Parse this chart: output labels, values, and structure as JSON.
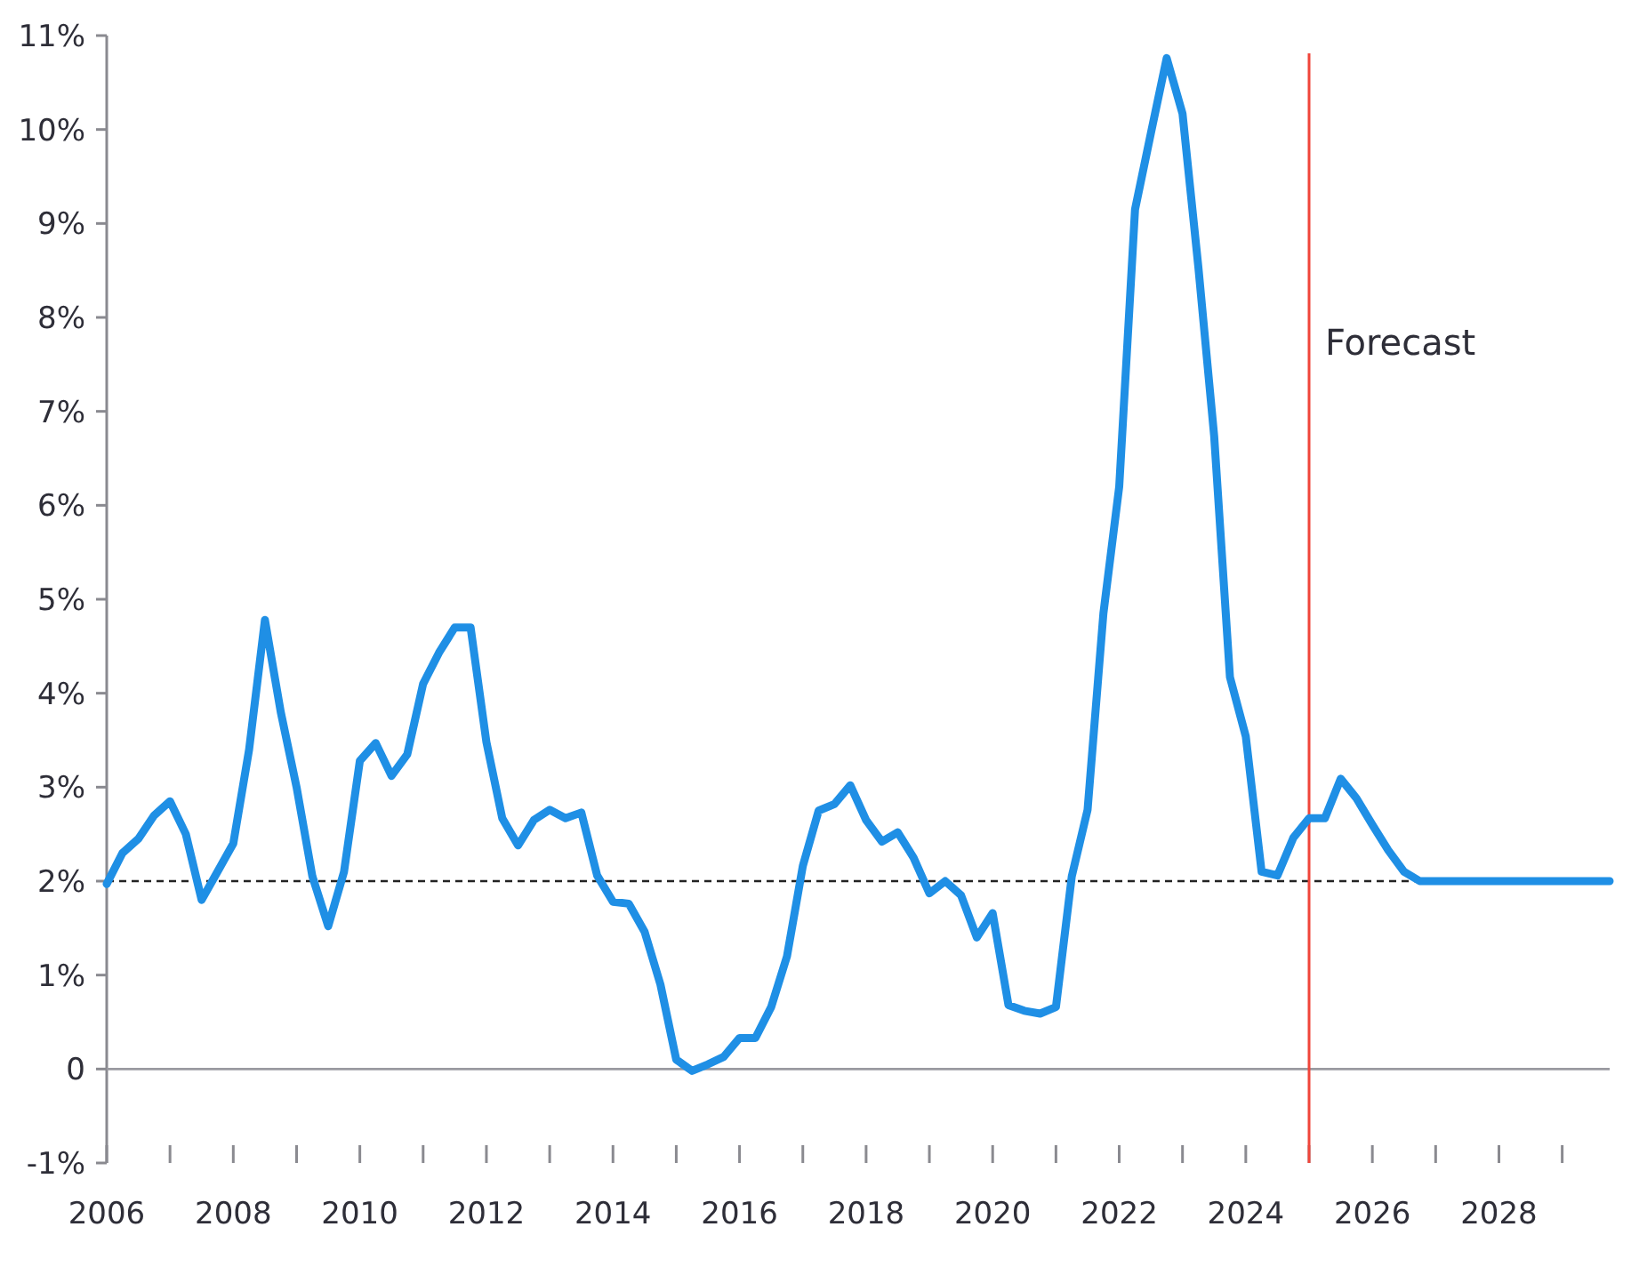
{
  "chart_data": {
    "type": "line",
    "x": [
      2006,
      2006.25,
      2006.5,
      2006.75,
      2007,
      2007.25,
      2007.5,
      2007.75,
      2008,
      2008.25,
      2008.5,
      2008.75,
      2009,
      2009.25,
      2009.5,
      2009.75,
      2010,
      2010.25,
      2010.5,
      2010.75,
      2011,
      2011.25,
      2011.5,
      2011.75,
      2012,
      2012.25,
      2012.5,
      2012.75,
      2013,
      2013.25,
      2013.5,
      2013.75,
      2014,
      2014.25,
      2014.5,
      2014.75,
      2015,
      2015.25,
      2015.5,
      2015.75,
      2016,
      2016.25,
      2016.5,
      2016.75,
      2017,
      2017.25,
      2017.5,
      2017.75,
      2018,
      2018.25,
      2018.5,
      2018.75,
      2019,
      2019.25,
      2019.5,
      2019.75,
      2020,
      2020.25,
      2020.5,
      2020.75,
      2021,
      2021.25,
      2021.5,
      2021.75,
      2022,
      2022.25,
      2022.5,
      2022.75,
      2023,
      2023.25,
      2023.5,
      2023.75,
      2024,
      2024.25,
      2024.5,
      2024.75,
      2025,
      2025.25,
      2025.5,
      2025.75,
      2026,
      2026.25,
      2026.5,
      2026.75,
      2027,
      2027.25,
      2027.5,
      2027.75,
      2028,
      2028.25,
      2028.5,
      2028.75,
      2029,
      2029.25,
      2029.5,
      2029.75
    ],
    "series": [
      {
        "color": "#1f8fe5",
        "values": [
          1.97,
          2.3,
          2.45,
          2.7,
          2.85,
          2.5,
          1.8,
          2.1,
          2.4,
          3.4,
          4.78,
          3.8,
          3.0,
          2.05,
          1.52,
          2.1,
          3.28,
          3.47,
          3.12,
          3.35,
          4.1,
          4.43,
          4.7,
          4.7,
          3.48,
          2.67,
          2.38,
          2.65,
          2.76,
          2.67,
          2.73,
          2.06,
          1.78,
          1.76,
          1.46,
          0.9,
          0.1,
          -0.02,
          0.05,
          0.13,
          0.33,
          0.33,
          0.66,
          1.2,
          2.16,
          2.75,
          2.82,
          3.02,
          2.65,
          2.42,
          2.52,
          2.25,
          1.87,
          2.0,
          1.85,
          1.4,
          1.66,
          0.68,
          0.62,
          0.59,
          0.66,
          2.05,
          2.76,
          4.85,
          6.2,
          9.15,
          9.96,
          10.76,
          10.17,
          8.54,
          6.74,
          4.17,
          3.54,
          2.1,
          2.06,
          2.46,
          2.67,
          2.67,
          3.09,
          2.88,
          2.6,
          2.33,
          2.1,
          2.0,
          2.0,
          2.0,
          2.0,
          2.0,
          2.0,
          2.0,
          2.0,
          2.0,
          2.0,
          2.0,
          2.0,
          2.0
        ]
      }
    ],
    "xlim": [
      2006,
      2029.75
    ],
    "xticks": [
      2006,
      {
        "value": 2007,
        "label": null
      },
      2008,
      {
        "value": 2009,
        "label": null
      },
      2010,
      {
        "value": 2011,
        "label": null
      },
      2012,
      {
        "value": 2013,
        "label": null
      },
      2014,
      {
        "value": 2015,
        "label": null
      },
      2016,
      {
        "value": 2017,
        "label": null
      },
      2018,
      {
        "value": 2019,
        "label": null
      },
      2020,
      {
        "value": 2021,
        "label": null
      },
      2022,
      {
        "value": 2023,
        "label": null
      },
      2024,
      {
        "value": 2025,
        "label": null
      },
      2026,
      {
        "value": 2027,
        "label": null
      },
      2028,
      {
        "value": 2029,
        "label": null
      }
    ],
    "ylim": [
      -1,
      11
    ],
    "yticks": [
      {
        "value": -1,
        "label": "-1%"
      },
      0,
      {
        "value": 1,
        "label": "1%"
      },
      {
        "value": 2,
        "label": "2%"
      },
      {
        "value": 3,
        "label": "3%"
      },
      {
        "value": 4,
        "label": "4%"
      },
      {
        "value": 5,
        "label": "5%"
      },
      {
        "value": 6,
        "label": "6%"
      },
      {
        "value": 7,
        "label": "7%"
      },
      {
        "value": 8,
        "label": "8%"
      },
      {
        "value": 9,
        "label": "9%"
      },
      {
        "value": 10,
        "label": "10%"
      },
      {
        "value": 11,
        "label": "11%"
      }
    ],
    "ref_lines": [
      {
        "axis": "y",
        "value": 0,
        "color": "#9a9aa0",
        "line_style": "solid"
      },
      {
        "axis": "y",
        "value": 2,
        "color": "#222222",
        "line_style": "dashed"
      },
      {
        "axis": "x",
        "value": 2025,
        "label": "Forecast",
        "color": "#f0453a",
        "line_style": "solid"
      }
    ],
    "grid": false,
    "marker": "none",
    "line_style": "solid"
  }
}
